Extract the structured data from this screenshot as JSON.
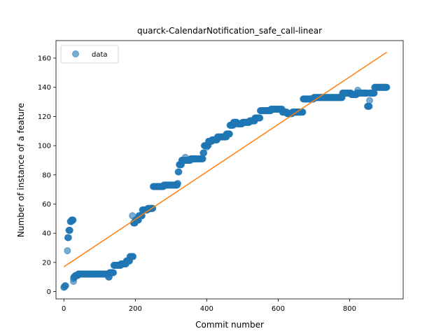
{
  "chart_data": {
    "type": "scatter",
    "title": "quarck-CalendarNotification_safe_call-linear",
    "xlabel": "Commit number",
    "ylabel": "Number of instance of a feature",
    "xlim": [
      -22,
      950
    ],
    "ylim": [
      -5,
      172
    ],
    "xticks": [
      "0",
      "200",
      "400",
      "600",
      "800"
    ],
    "xtick_values": [
      0,
      200,
      400,
      600,
      800
    ],
    "yticks": [
      "0",
      "20",
      "40",
      "60",
      "80",
      "100",
      "120",
      "140",
      "160"
    ],
    "ytick_values": [
      0,
      20,
      40,
      60,
      80,
      100,
      120,
      140,
      160
    ],
    "grid": false,
    "legend": {
      "placement": "top-left",
      "entries": [
        "data"
      ]
    },
    "colors": {
      "data": "#1f77b4",
      "fit": "#ff7f0e"
    },
    "series": [
      {
        "name": "data",
        "kind": "scatter",
        "steps": [
          [
            0,
            2,
            3
          ],
          [
            3,
            6,
            4
          ],
          [
            10,
            11,
            28
          ],
          [
            11,
            14,
            37
          ],
          [
            14,
            18,
            42
          ],
          [
            18,
            22,
            48
          ],
          [
            22,
            27,
            49
          ],
          [
            27,
            28,
            7
          ],
          [
            28,
            32,
            10
          ],
          [
            32,
            40,
            11
          ],
          [
            40,
            125,
            12
          ],
          [
            125,
            128,
            10
          ],
          [
            128,
            140,
            13
          ],
          [
            140,
            160,
            18
          ],
          [
            160,
            175,
            19
          ],
          [
            175,
            185,
            21
          ],
          [
            185,
            195,
            24
          ],
          [
            195,
            200,
            47
          ],
          [
            200,
            210,
            49
          ],
          [
            210,
            220,
            52
          ],
          [
            220,
            235,
            56
          ],
          [
            235,
            250,
            57
          ],
          [
            250,
            280,
            72
          ],
          [
            280,
            318,
            73
          ],
          [
            318,
            320,
            74
          ],
          [
            320,
            323,
            82
          ],
          [
            323,
            330,
            87
          ],
          [
            330,
            345,
            90
          ],
          [
            345,
            355,
            90
          ],
          [
            355,
            390,
            91
          ],
          [
            390,
            393,
            95
          ],
          [
            393,
            405,
            100
          ],
          [
            405,
            415,
            103
          ],
          [
            415,
            430,
            104
          ],
          [
            430,
            440,
            106
          ],
          [
            440,
            455,
            106
          ],
          [
            455,
            465,
            108
          ],
          [
            465,
            475,
            114
          ],
          [
            475,
            485,
            116
          ],
          [
            485,
            500,
            115
          ],
          [
            500,
            520,
            116
          ],
          [
            520,
            535,
            117
          ],
          [
            535,
            550,
            119
          ],
          [
            550,
            580,
            124
          ],
          [
            580,
            600,
            125
          ],
          [
            600,
            612,
            125
          ],
          [
            612,
            625,
            123
          ],
          [
            625,
            640,
            122
          ],
          [
            640,
            660,
            123
          ],
          [
            660,
            670,
            123
          ],
          [
            670,
            690,
            132
          ],
          [
            690,
            700,
            132
          ],
          [
            700,
            720,
            133
          ],
          [
            720,
            760,
            133
          ],
          [
            760,
            780,
            133
          ],
          [
            780,
            800,
            136
          ],
          [
            800,
            805,
            136
          ],
          [
            805,
            820,
            135
          ],
          [
            820,
            840,
            136
          ],
          [
            840,
            850,
            136
          ],
          [
            850,
            856,
            127
          ],
          [
            856,
            870,
            136
          ],
          [
            870,
            905,
            140
          ]
        ],
        "outliers": [
          [
            192,
            52
          ],
          [
            340,
            92
          ],
          [
            856,
            131
          ],
          [
            400,
            99
          ],
          [
            455,
            106
          ],
          [
            823,
            138
          ],
          [
            22,
            49
          ],
          [
            27,
            9
          ]
        ]
      },
      {
        "name": "",
        "kind": "line",
        "x": [
          0,
          904
        ],
        "y": [
          17,
          164
        ]
      }
    ]
  }
}
